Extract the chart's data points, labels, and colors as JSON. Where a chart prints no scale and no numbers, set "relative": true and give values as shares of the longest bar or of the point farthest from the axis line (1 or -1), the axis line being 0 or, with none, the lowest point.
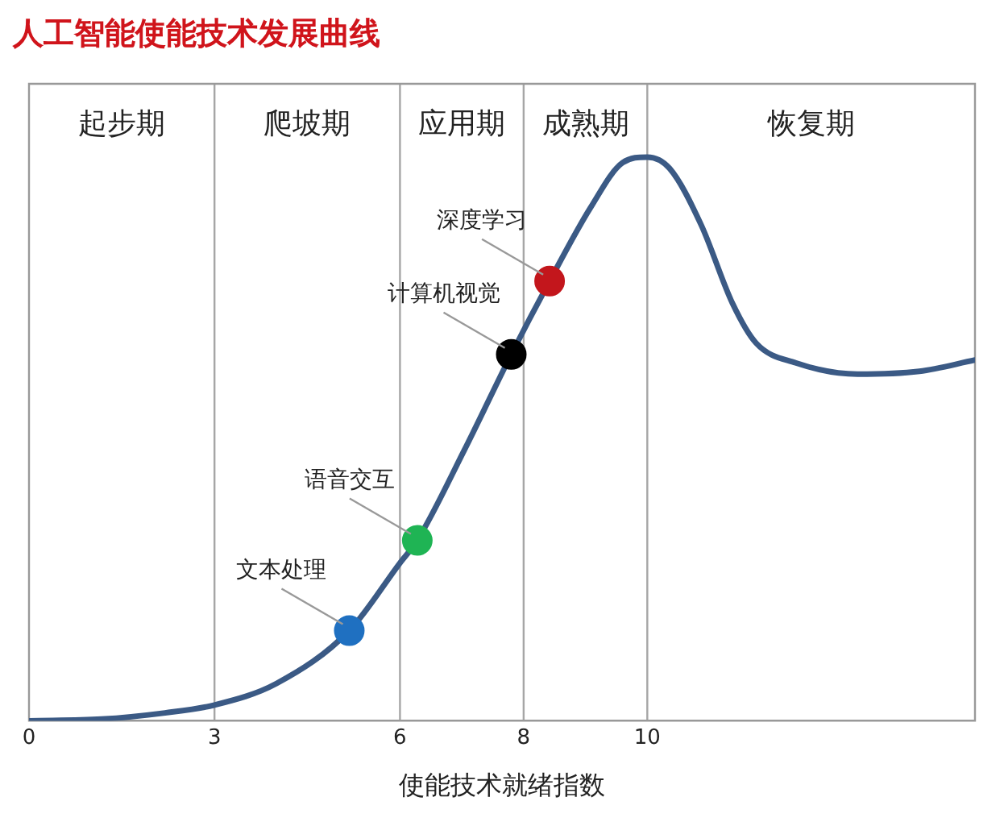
{
  "chart_data": {
    "type": "line",
    "title": "人工智能使能技术发展曲线",
    "xlabel": "使能技术就绪指数",
    "relative": true,
    "xlim": [
      0,
      15.3
    ],
    "xticks": [
      0,
      3,
      6,
      8,
      10
    ],
    "legend": false,
    "marker": "none",
    "line_style": "solid",
    "series": [
      {
        "color": "#3b5a85",
        "x": [
          0,
          1.17,
          2.2,
          3,
          4,
          5.18,
          6,
          6.28,
          7.04,
          7.8,
          8.42,
          9.08,
          9.6,
          10,
          10.36,
          10.87,
          11.38,
          11.76,
          12.4,
          13.4,
          14.4,
          15.3
        ],
        "values": [
          0,
          0.003,
          0.014,
          0.028,
          0.066,
          0.16,
          0.28,
          0.32,
          0.48,
          0.65,
          0.78,
          0.91,
          0.99,
          1,
          0.98,
          0.88,
          0.74,
          0.67,
          0.635,
          0.615,
          0.62,
          0.64
        ]
      },
      {
        "type": "scatter",
        "name": "文本处理",
        "color": "#1f70c1",
        "marker": "circle",
        "x": [
          5.18
        ],
        "values": [
          0.16
        ]
      },
      {
        "type": "scatter",
        "name": "语音交互",
        "color": "#1fb454",
        "marker": "circle",
        "x": [
          6.28
        ],
        "values": [
          0.32
        ]
      },
      {
        "type": "scatter",
        "name": "计算机视觉",
        "color": "#000000",
        "marker": "circle",
        "x": [
          7.8
        ],
        "values": [
          0.65
        ]
      },
      {
        "type": "scatter",
        "name": "深度学习",
        "color": "#c3161c",
        "marker": "circle",
        "x": [
          8.42
        ],
        "values": [
          0.78
        ]
      }
    ],
    "ref_lines": [
      {
        "axis": "x",
        "value": 3,
        "color": "#a6a6a6"
      },
      {
        "axis": "x",
        "value": 6,
        "color": "#a6a6a6"
      },
      {
        "axis": "x",
        "value": 8,
        "color": "#a6a6a6"
      },
      {
        "axis": "x",
        "value": 10,
        "color": "#a6a6a6"
      }
    ],
    "annotations": [
      "起步期",
      "爬坡期",
      "应用期",
      "成熟期",
      "恢复期"
    ]
  }
}
